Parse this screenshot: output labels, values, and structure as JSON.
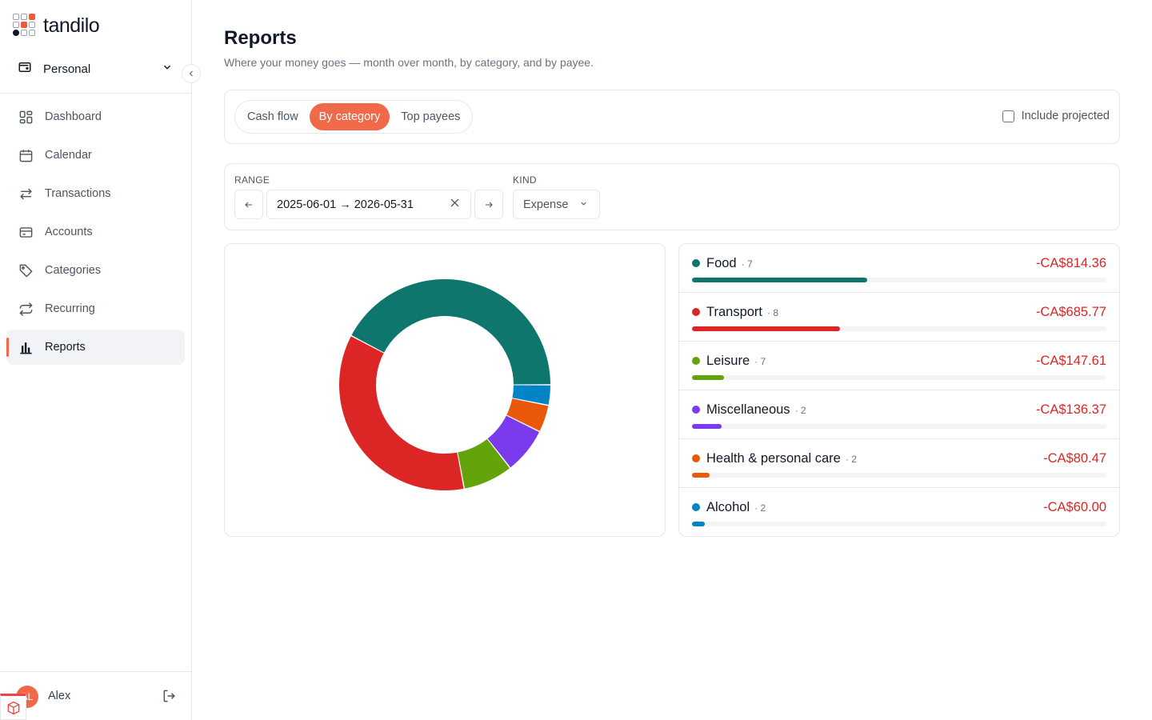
{
  "app": {
    "logo_text": "tandilo"
  },
  "sidebar": {
    "workspace": "Personal",
    "items": [
      {
        "label": "Dashboard",
        "icon": "dashboard-icon"
      },
      {
        "label": "Calendar",
        "icon": "calendar-icon"
      },
      {
        "label": "Transactions",
        "icon": "transactions-icon"
      },
      {
        "label": "Accounts",
        "icon": "accounts-icon"
      },
      {
        "label": "Categories",
        "icon": "tag-icon"
      },
      {
        "label": "Recurring",
        "icon": "recurring-icon"
      },
      {
        "label": "Reports",
        "icon": "bar-chart-icon",
        "active": true
      }
    ],
    "user": {
      "initials": "AL",
      "name": "Alex"
    }
  },
  "page": {
    "title": "Reports",
    "subtitle": "Where your money goes — month over month, by category, and by payee."
  },
  "tabs": {
    "items": [
      "Cash flow",
      "By category",
      "Top payees"
    ],
    "active": "By category",
    "include_projected_label": "Include projected",
    "include_projected_checked": false
  },
  "filters": {
    "range_label": "RANGE",
    "range_value": "2025-06-01 → 2026-05-31",
    "kind_label": "KIND",
    "kind_value": "Expense"
  },
  "colors": {
    "accent": "#f06a4a",
    "negative": "#dc2626"
  },
  "chart_data": {
    "type": "pie",
    "categories": [
      "Food",
      "Transport",
      "Leisure",
      "Miscellaneous",
      "Health & personal care",
      "Alcohol"
    ],
    "values": [
      814.36,
      685.77,
      147.61,
      136.37,
      80.47,
      60.0
    ],
    "colors": [
      "#0f766e",
      "#dc2626",
      "#65a30d",
      "#7c3aed",
      "#ea580c",
      "#0284c7"
    ]
  },
  "categories": [
    {
      "name": "Food",
      "count": "· 7",
      "amount": "-CA$814.36",
      "value": 814.36,
      "color": "#0f766e"
    },
    {
      "name": "Transport",
      "count": "· 8",
      "amount": "-CA$685.77",
      "value": 685.77,
      "color": "#dc2626"
    },
    {
      "name": "Leisure",
      "count": "· 7",
      "amount": "-CA$147.61",
      "value": 147.61,
      "color": "#65a30d"
    },
    {
      "name": "Miscellaneous",
      "count": "· 2",
      "amount": "-CA$136.37",
      "value": 136.37,
      "color": "#7c3aed"
    },
    {
      "name": "Health & personal care",
      "count": "· 2",
      "amount": "-CA$80.47",
      "value": 80.47,
      "color": "#ea580c"
    },
    {
      "name": "Alcohol",
      "count": "· 2",
      "amount": "-CA$60.00",
      "value": 60.0,
      "color": "#0284c7"
    }
  ]
}
